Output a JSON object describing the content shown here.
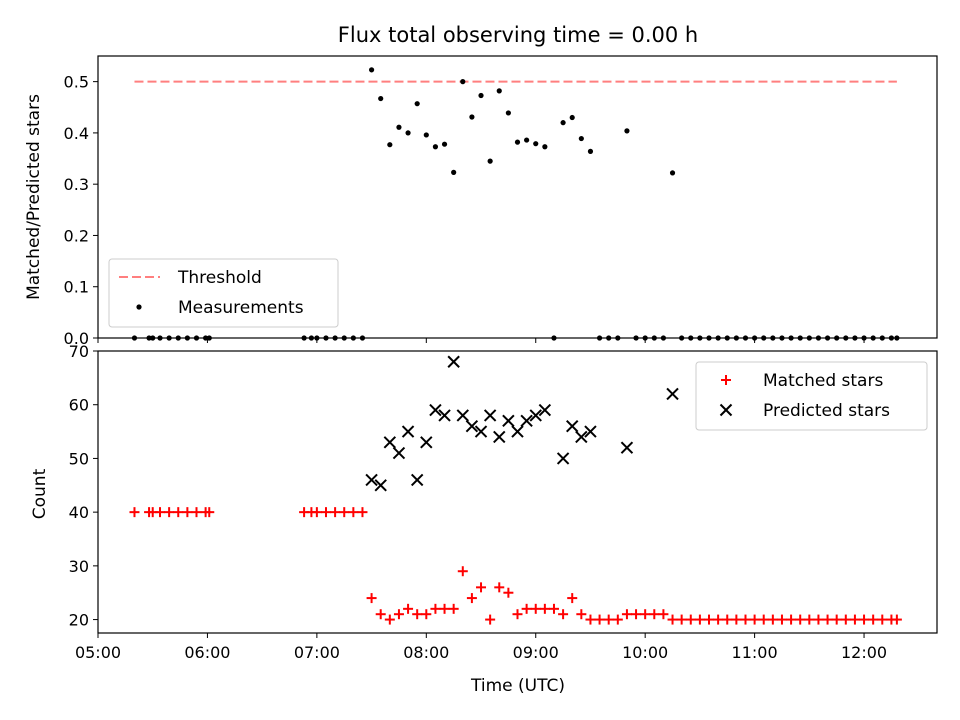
{
  "chart_data": [
    {
      "type": "scatter",
      "title": "Flux total observing time = 0.00 h",
      "xlabel": "",
      "ylabel": "Matched/Predicted stars",
      "ylim": [
        0,
        0.55
      ],
      "xlim": [
        "05:00",
        "12:40"
      ],
      "yticks": [
        "0.0",
        "0.1",
        "0.2",
        "0.3",
        "0.4",
        "0.5"
      ],
      "legend_position": "lower-left",
      "threshold": {
        "name": "Threshold",
        "value": 0.5,
        "x_start": "05:20",
        "x_end": "12:18",
        "color": "#ff7f7f"
      },
      "series": [
        {
          "name": "Measurements",
          "color": "#000000",
          "points": [
            [
              "05:20",
              0
            ],
            [
              "05:28",
              0
            ],
            [
              "05:30",
              0
            ],
            [
              "05:34",
              0
            ],
            [
              "05:39",
              0
            ],
            [
              "05:44",
              0
            ],
            [
              "05:49",
              0
            ],
            [
              "05:54",
              0
            ],
            [
              "05:59",
              0
            ],
            [
              "06:01",
              0
            ],
            [
              "06:53",
              0
            ],
            [
              "06:57",
              0
            ],
            [
              "07:00",
              0
            ],
            [
              "07:05",
              0
            ],
            [
              "07:10",
              0
            ],
            [
              "07:15",
              0
            ],
            [
              "07:20",
              0
            ],
            [
              "07:25",
              0
            ],
            [
              "07:30",
              0.523
            ],
            [
              "07:35",
              0.467
            ],
            [
              "07:40",
              0.377
            ],
            [
              "07:45",
              0.411
            ],
            [
              "07:50",
              0.4
            ],
            [
              "07:55",
              0.457
            ],
            [
              "08:00",
              0.396
            ],
            [
              "08:05",
              0.373
            ],
            [
              "08:10",
              0.378
            ],
            [
              "08:15",
              0.323
            ],
            [
              "08:20",
              0.5
            ],
            [
              "08:25",
              0.431
            ],
            [
              "08:30",
              0.473
            ],
            [
              "08:35",
              0.345
            ],
            [
              "08:40",
              0.482
            ],
            [
              "08:45",
              0.439
            ],
            [
              "08:50",
              0.382
            ],
            [
              "08:55",
              0.386
            ],
            [
              "09:00",
              0.379
            ],
            [
              "09:05",
              0.373
            ],
            [
              "09:10",
              0
            ],
            [
              "09:15",
              0.42
            ],
            [
              "09:20",
              0.43
            ],
            [
              "09:25",
              0.389
            ],
            [
              "09:30",
              0.364
            ],
            [
              "09:35",
              0
            ],
            [
              "09:40",
              0
            ],
            [
              "09:45",
              0
            ],
            [
              "09:50",
              0.404
            ],
            [
              "09:55",
              0
            ],
            [
              "10:00",
              0
            ],
            [
              "10:05",
              0
            ],
            [
              "10:10",
              0
            ],
            [
              "10:15",
              0.322
            ],
            [
              "10:20",
              0
            ],
            [
              "10:25",
              0
            ],
            [
              "10:30",
              0
            ],
            [
              "10:35",
              0
            ],
            [
              "10:40",
              0
            ],
            [
              "10:45",
              0
            ],
            [
              "10:50",
              0
            ],
            [
              "10:55",
              0
            ],
            [
              "11:00",
              0
            ],
            [
              "11:05",
              0
            ],
            [
              "11:10",
              0
            ],
            [
              "11:15",
              0
            ],
            [
              "11:20",
              0
            ],
            [
              "11:25",
              0
            ],
            [
              "11:30",
              0
            ],
            [
              "11:35",
              0
            ],
            [
              "11:40",
              0
            ],
            [
              "11:45",
              0
            ],
            [
              "11:50",
              0
            ],
            [
              "11:55",
              0
            ],
            [
              "12:00",
              0
            ],
            [
              "12:05",
              0
            ],
            [
              "12:10",
              0
            ],
            [
              "12:15",
              0
            ],
            [
              "12:18",
              0
            ]
          ]
        }
      ]
    },
    {
      "type": "scatter",
      "title": "",
      "xlabel": "Time (UTC)",
      "ylabel": "Count",
      "ylim": [
        17.5,
        70
      ],
      "xlim": [
        "05:00",
        "12:40"
      ],
      "yticks": [
        "20",
        "30",
        "40",
        "50",
        "60",
        "70"
      ],
      "xticks": [
        "05:00",
        "06:00",
        "07:00",
        "08:00",
        "09:00",
        "10:00",
        "11:00",
        "12:00"
      ],
      "legend_position": "upper-right",
      "series": [
        {
          "name": "Matched stars",
          "color": "#ff0000",
          "marker": "plus",
          "points": [
            [
              "05:20",
              40
            ],
            [
              "05:28",
              40
            ],
            [
              "05:30",
              40
            ],
            [
              "05:34",
              40
            ],
            [
              "05:39",
              40
            ],
            [
              "05:44",
              40
            ],
            [
              "05:49",
              40
            ],
            [
              "05:54",
              40
            ],
            [
              "05:59",
              40
            ],
            [
              "06:01",
              40
            ],
            [
              "06:53",
              40
            ],
            [
              "06:57",
              40
            ],
            [
              "07:00",
              40
            ],
            [
              "07:05",
              40
            ],
            [
              "07:10",
              40
            ],
            [
              "07:15",
              40
            ],
            [
              "07:20",
              40
            ],
            [
              "07:25",
              40
            ],
            [
              "07:30",
              24
            ],
            [
              "07:35",
              21
            ],
            [
              "07:40",
              20
            ],
            [
              "07:45",
              21
            ],
            [
              "07:50",
              22
            ],
            [
              "07:55",
              21
            ],
            [
              "08:00",
              21
            ],
            [
              "08:05",
              22
            ],
            [
              "08:10",
              22
            ],
            [
              "08:15",
              22
            ],
            [
              "08:20",
              29
            ],
            [
              "08:25",
              24
            ],
            [
              "08:30",
              26
            ],
            [
              "08:35",
              20
            ],
            [
              "08:40",
              26
            ],
            [
              "08:45",
              25
            ],
            [
              "08:50",
              21
            ],
            [
              "08:55",
              22
            ],
            [
              "09:00",
              22
            ],
            [
              "09:05",
              22
            ],
            [
              "09:10",
              22
            ],
            [
              "09:15",
              21
            ],
            [
              "09:20",
              24
            ],
            [
              "09:25",
              21
            ],
            [
              "09:30",
              20
            ],
            [
              "09:35",
              20
            ],
            [
              "09:40",
              20
            ],
            [
              "09:45",
              20
            ],
            [
              "09:50",
              21
            ],
            [
              "09:55",
              21
            ],
            [
              "10:00",
              21
            ],
            [
              "10:05",
              21
            ],
            [
              "10:10",
              21
            ],
            [
              "10:15",
              20
            ],
            [
              "10:20",
              20
            ],
            [
              "10:25",
              20
            ],
            [
              "10:30",
              20
            ],
            [
              "10:35",
              20
            ],
            [
              "10:40",
              20
            ],
            [
              "10:45",
              20
            ],
            [
              "10:50",
              20
            ],
            [
              "10:55",
              20
            ],
            [
              "11:00",
              20
            ],
            [
              "11:05",
              20
            ],
            [
              "11:10",
              20
            ],
            [
              "11:15",
              20
            ],
            [
              "11:20",
              20
            ],
            [
              "11:25",
              20
            ],
            [
              "11:30",
              20
            ],
            [
              "11:35",
              20
            ],
            [
              "11:40",
              20
            ],
            [
              "11:45",
              20
            ],
            [
              "11:50",
              20
            ],
            [
              "11:55",
              20
            ],
            [
              "12:00",
              20
            ],
            [
              "12:05",
              20
            ],
            [
              "12:10",
              20
            ],
            [
              "12:15",
              20
            ],
            [
              "12:18",
              20
            ]
          ]
        },
        {
          "name": "Predicted stars",
          "color": "#000000",
          "marker": "x",
          "points": [
            [
              "07:30",
              46
            ],
            [
              "07:35",
              45
            ],
            [
              "07:40",
              53
            ],
            [
              "07:45",
              51
            ],
            [
              "07:50",
              55
            ],
            [
              "07:55",
              46
            ],
            [
              "08:00",
              53
            ],
            [
              "08:05",
              59
            ],
            [
              "08:10",
              58
            ],
            [
              "08:15",
              68
            ],
            [
              "08:20",
              58
            ],
            [
              "08:25",
              56
            ],
            [
              "08:30",
              55
            ],
            [
              "08:35",
              58
            ],
            [
              "08:40",
              54
            ],
            [
              "08:45",
              57
            ],
            [
              "08:50",
              55
            ],
            [
              "08:55",
              57
            ],
            [
              "09:00",
              58
            ],
            [
              "09:05",
              59
            ],
            [
              "09:15",
              50
            ],
            [
              "09:20",
              56
            ],
            [
              "09:25",
              54
            ],
            [
              "09:30",
              55
            ],
            [
              "09:50",
              52
            ],
            [
              "10:15",
              62
            ]
          ]
        }
      ]
    }
  ]
}
